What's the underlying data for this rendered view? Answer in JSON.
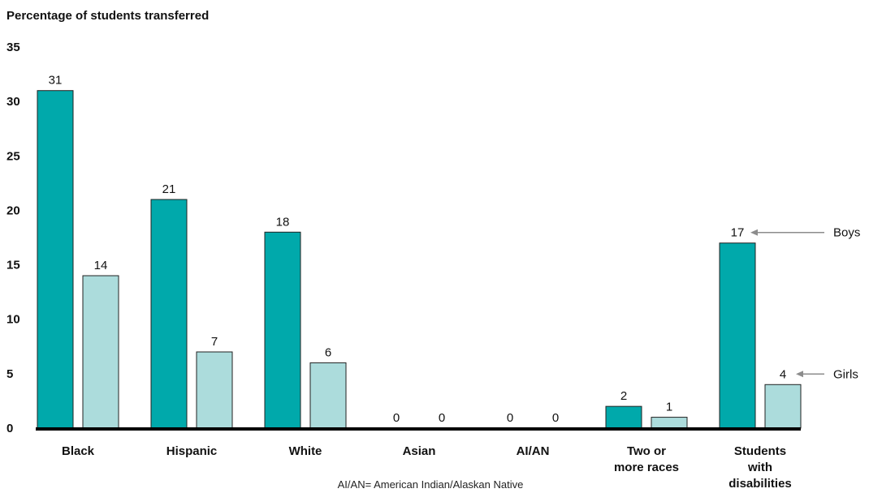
{
  "chart_data": {
    "type": "bar",
    "ylabel": "Percentage of students transferred",
    "ylim": [
      0,
      35
    ],
    "yticks": [
      "0",
      "5",
      "10",
      "15",
      "20",
      "25",
      "30",
      "35"
    ],
    "categories": [
      [
        "Black"
      ],
      [
        "Hispanic"
      ],
      [
        "White"
      ],
      [
        "Asian"
      ],
      [
        "AI/AN"
      ],
      [
        "Two or",
        "more races"
      ],
      [
        "Students",
        "with",
        "disabilities"
      ]
    ],
    "series": [
      {
        "name": "Boys",
        "values": [
          31,
          21,
          18,
          0,
          0,
          2,
          17
        ]
      },
      {
        "name": "Girls",
        "values": [
          14,
          7,
          6,
          0,
          0,
          1,
          4
        ]
      }
    ],
    "footnote": "AI/AN= American Indian/Alaskan Native",
    "colors": {
      "boys": "#00a9ab",
      "girls": "#acdcdc",
      "axis": "#000000",
      "arrow": "#8c8c8c"
    }
  }
}
